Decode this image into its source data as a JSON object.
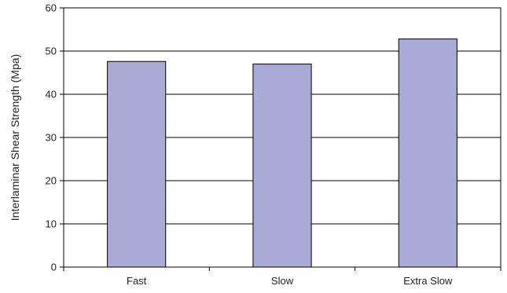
{
  "chart_data": {
    "type": "bar",
    "title": "",
    "xlabel": "",
    "ylabel": "Interlaminar Shear Strength (Mpa)",
    "categories": [
      "Fast",
      "Slow",
      "Extra Slow"
    ],
    "values": [
      47.6,
      47.0,
      52.8
    ],
    "ylim": [
      0,
      60
    ],
    "yticks": [
      0,
      10,
      20,
      30,
      40,
      50,
      60
    ],
    "grid": true,
    "legend": "none",
    "bar_color": "#a9abd6",
    "bar_edge_color": "#000000"
  }
}
